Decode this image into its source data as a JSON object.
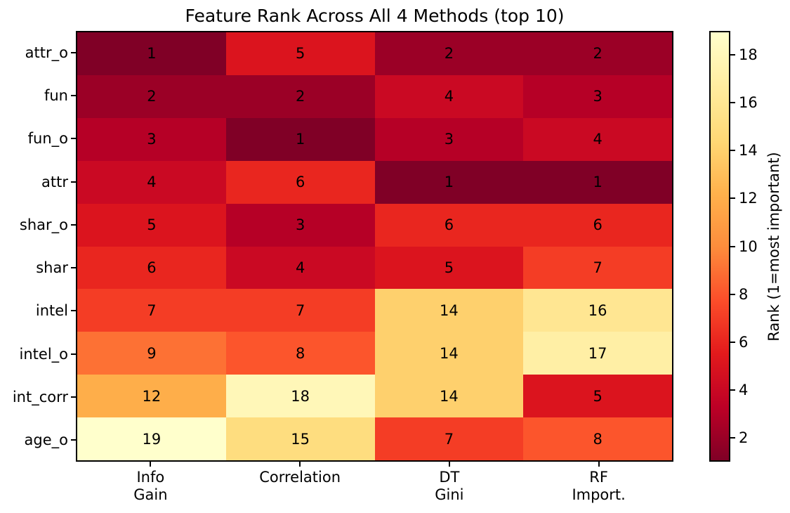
{
  "chart_data": {
    "type": "heatmap",
    "title": "Feature Rank Across All 4 Methods (top 10)",
    "rows": [
      "attr_o",
      "fun",
      "fun_o",
      "attr",
      "shar_o",
      "shar",
      "intel",
      "intel_o",
      "int_corr",
      "age_o"
    ],
    "columns": [
      [
        "Info",
        "Gain"
      ],
      [
        "Correlation"
      ],
      [
        "DT",
        "Gini"
      ],
      [
        "RF",
        "Import."
      ]
    ],
    "values": [
      [
        1,
        5,
        2,
        2
      ],
      [
        2,
        2,
        4,
        3
      ],
      [
        3,
        1,
        3,
        4
      ],
      [
        4,
        6,
        1,
        1
      ],
      [
        5,
        3,
        6,
        6
      ],
      [
        6,
        4,
        5,
        7
      ],
      [
        7,
        7,
        14,
        16
      ],
      [
        9,
        8,
        14,
        17
      ],
      [
        12,
        18,
        14,
        5
      ],
      [
        19,
        15,
        7,
        8
      ]
    ],
    "vmin": 1,
    "vmax": 19,
    "colormap_name": "YlOrRd_r",
    "colormap_stops_dark_to_light": [
      "#800026",
      "#bd0026",
      "#e31a1c",
      "#fc4e2a",
      "#fd8d3c",
      "#feb24c",
      "#fed976",
      "#ffeda0",
      "#ffffcc"
    ],
    "annotation_color": "#000000",
    "background_color": "#ffffff",
    "axis_color": "#000000",
    "grid": false,
    "colorbar": {
      "label": "Rank (1=most important)",
      "ticks": [
        2,
        4,
        6,
        8,
        10,
        12,
        14,
        16,
        18
      ],
      "position": "right"
    }
  }
}
